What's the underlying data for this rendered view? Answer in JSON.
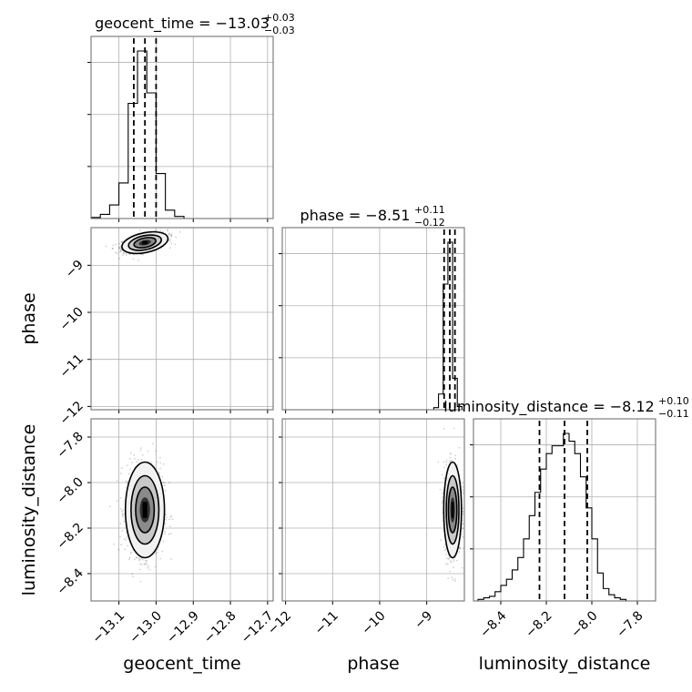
{
  "chart_data": {
    "type": "corner",
    "parameters": [
      "geocent_time",
      "phase",
      "luminosity_distance"
    ],
    "titles": [
      {
        "name": "geocent_time",
        "median": "−13.03",
        "plus": "+0.03",
        "minus": "−0.03"
      },
      {
        "name": "phase",
        "median": "−8.51",
        "plus": "+0.11",
        "minus": "−0.12"
      },
      {
        "name": "luminosity_distance",
        "median": "−8.12",
        "plus": "+0.10",
        "minus": "−0.11"
      }
    ],
    "ranges": [
      [
        -13.175,
        -12.685
      ],
      [
        -12.07,
        -8.2
      ],
      [
        -8.52,
        -7.72
      ]
    ],
    "x_ticks": [
      {
        "values": [
          -13.1,
          -13.0,
          -12.9,
          -12.8,
          -12.7
        ],
        "labels": [
          "−13.1",
          "−13.0",
          "−12.9",
          "−12.8",
          "−12.7"
        ]
      },
      {
        "values": [
          -12,
          -11,
          -10,
          -9
        ],
        "labels": [
          "−12",
          "−11",
          "−10",
          "−9"
        ]
      },
      {
        "values": [
          -8.4,
          -8.2,
          -8.0,
          -7.8
        ],
        "labels": [
          "−8.4",
          "−8.2",
          "−8.0",
          "−7.8"
        ]
      }
    ],
    "y_ticks": [
      null,
      {
        "values": [
          -9,
          -10,
          -11,
          -12
        ],
        "labels": [
          "−9",
          "−10",
          "−11",
          "−12"
        ]
      },
      {
        "values": [
          -7.8,
          -8.0,
          -8.2,
          -8.4
        ],
        "labels": [
          "−7.8",
          "−8.0",
          "−8.2",
          "−8.4"
        ]
      }
    ],
    "quantiles": [
      [
        -13.06,
        -13.03,
        -13.0
      ],
      [
        -8.63,
        -8.51,
        -8.4
      ],
      [
        -8.23,
        -8.12,
        -8.02
      ]
    ],
    "histograms": [
      {
        "edges": [
          -13.175,
          -13.15,
          -13.125,
          -13.1,
          -13.075,
          -13.05,
          -13.025,
          -13.0,
          -12.975,
          -12.95,
          -12.925,
          -12.9,
          -12.875
        ],
        "counts": [
          1,
          4,
          13,
          34,
          110,
          160,
          120,
          43,
          8,
          2,
          0,
          0
        ]
      },
      {
        "edges": [
          -8.85,
          -8.75,
          -8.65,
          -8.55,
          -8.45,
          -8.35,
          -8.25
        ],
        "counts": [
          2,
          15,
          120,
          160,
          30,
          3
        ]
      },
      {
        "edges": [
          -8.5,
          -8.475,
          -8.45,
          -8.425,
          -8.4,
          -8.375,
          -8.35,
          -8.325,
          -8.3,
          -8.275,
          -8.25,
          -8.225,
          -8.2,
          -8.175,
          -8.15,
          -8.125,
          -8.1,
          -8.075,
          -8.05,
          -8.025,
          -8.0,
          -7.975,
          -7.95,
          -7.925,
          -7.9,
          -7.875,
          -7.85,
          -7.825
        ],
        "counts": [
          1,
          2,
          3,
          6,
          10,
          14,
          20,
          28,
          40,
          55,
          70,
          85,
          95,
          100,
          100,
          108,
          103,
          95,
          80,
          60,
          40,
          18,
          8,
          4,
          2,
          1,
          0
        ]
      }
    ],
    "density_centers": [
      {
        "pair": [
          0,
          1
        ],
        "x": -13.03,
        "y": -8.52,
        "sx": 0.03,
        "sy": 0.1,
        "rho": 0.5
      },
      {
        "pair": [
          0,
          2
        ],
        "x": -13.03,
        "y": -8.12,
        "sx": 0.025,
        "sy": 0.1,
        "rho": 0.0
      },
      {
        "pair": [
          1,
          2
        ],
        "x": -8.45,
        "y": -8.12,
        "sx": 0.09,
        "sy": 0.1,
        "rho": 0.0
      }
    ],
    "grid": true
  }
}
